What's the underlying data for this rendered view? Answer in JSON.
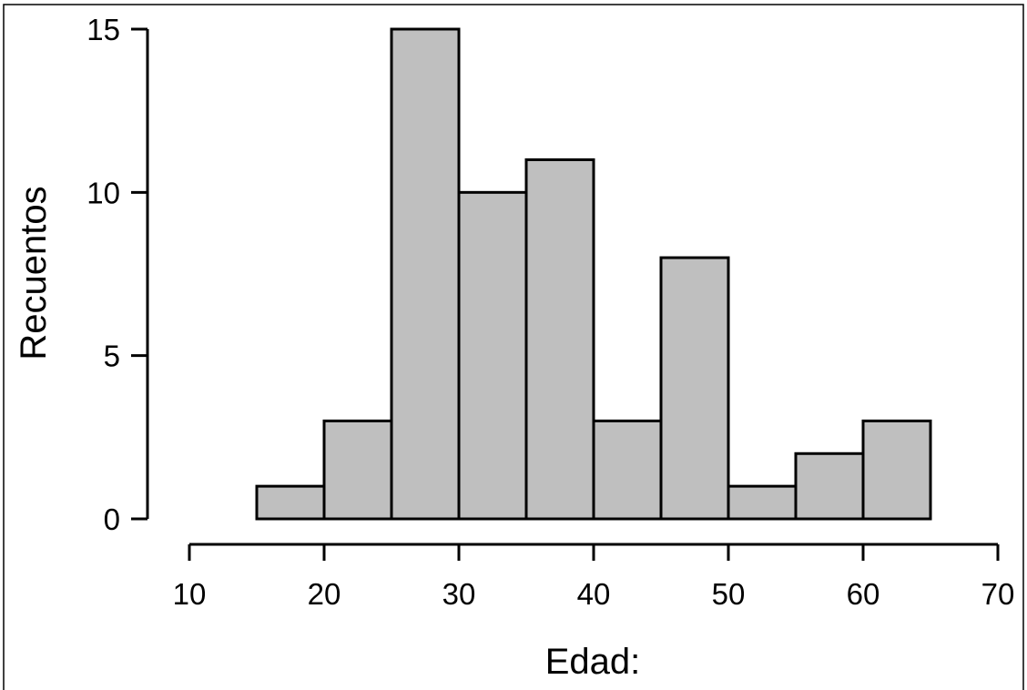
{
  "chart_data": {
    "type": "bar",
    "title": "",
    "xlabel": "Edad:",
    "ylabel": "Recuentos",
    "bins": [
      {
        "from": 15,
        "to": 20,
        "count": 1
      },
      {
        "from": 20,
        "to": 25,
        "count": 3
      },
      {
        "from": 25,
        "to": 30,
        "count": 15
      },
      {
        "from": 30,
        "to": 35,
        "count": 10
      },
      {
        "from": 35,
        "to": 40,
        "count": 11
      },
      {
        "from": 40,
        "to": 45,
        "count": 3
      },
      {
        "from": 45,
        "to": 50,
        "count": 8
      },
      {
        "from": 50,
        "to": 55,
        "count": 1
      },
      {
        "from": 55,
        "to": 60,
        "count": 2
      },
      {
        "from": 60,
        "to": 65,
        "count": 3
      }
    ],
    "xlim": [
      10,
      70
    ],
    "ylim": [
      0,
      15
    ],
    "xticks": [
      10,
      20,
      30,
      40,
      50,
      60,
      70
    ],
    "yticks": [
      0,
      5,
      10,
      15
    ],
    "grid": false,
    "bar_color": "#bfbfbf"
  }
}
